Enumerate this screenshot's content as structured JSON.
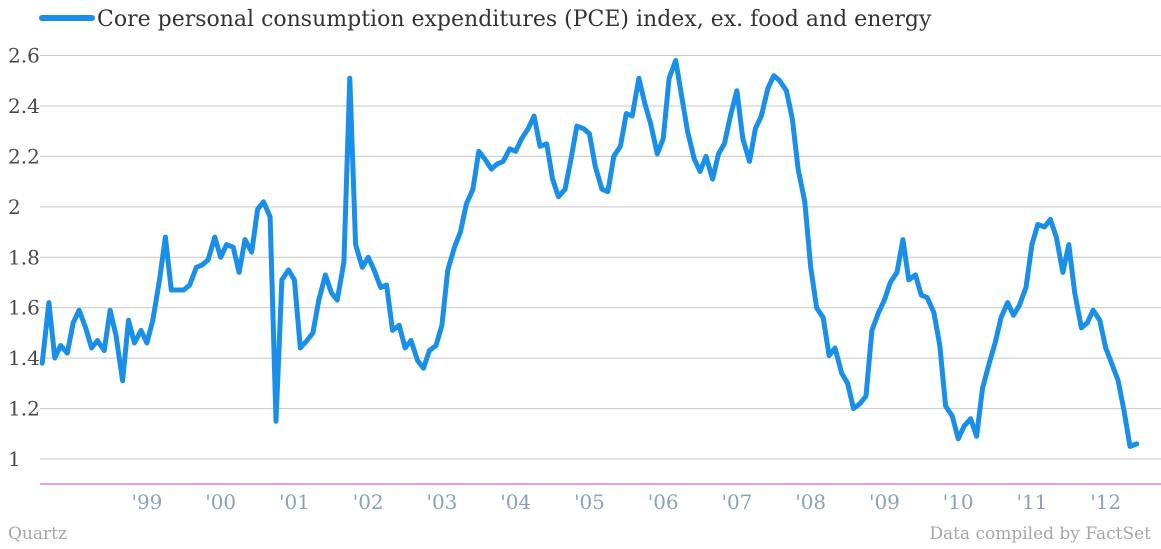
{
  "chart_data": {
    "type": "line",
    "title": "",
    "xlabel": "",
    "ylabel": "",
    "ylim": [
      0.9,
      2.6
    ],
    "yticks": [
      1,
      1.2,
      1.4,
      1.6,
      1.8,
      2,
      2.2,
      2.4,
      2.6
    ],
    "ytick_labels": [
      "1",
      "1.2",
      "1.4",
      "1.6",
      "1.8",
      "2",
      "2.2",
      "2.4",
      "2.6"
    ],
    "xticks": [
      {
        "label": "'99",
        "x": 1999.5
      },
      {
        "label": "'00",
        "x": 2000.5
      },
      {
        "label": "'01",
        "x": 2001.5
      },
      {
        "label": "'02",
        "x": 2002.5
      },
      {
        "label": "'03",
        "x": 2003.5
      },
      {
        "label": "'04",
        "x": 2004.5
      },
      {
        "label": "'05",
        "x": 2005.5
      },
      {
        "label": "'06",
        "x": 2006.5
      },
      {
        "label": "'07",
        "x": 2007.5
      },
      {
        "label": "'08",
        "x": 2008.5
      },
      {
        "label": "'09",
        "x": 2009.5
      },
      {
        "label": "'10",
        "x": 2010.5
      },
      {
        "label": "'11",
        "x": 2011.5
      },
      {
        "label": "'12",
        "x": 2012.5
      }
    ],
    "xlim": [
      1998.05,
      2013.25
    ],
    "grid": true,
    "legend_position": "top-left",
    "series": [
      {
        "name": "Core personal consumption expenditures (PCE) index, ex. food and energy",
        "color": "#1a8fea",
        "points": [
          [
            1998.08,
            1.38
          ],
          [
            1998.17,
            1.62
          ],
          [
            1998.25,
            1.4
          ],
          [
            1998.33,
            1.45
          ],
          [
            1998.42,
            1.42
          ],
          [
            1998.5,
            1.54
          ],
          [
            1998.58,
            1.59
          ],
          [
            1998.67,
            1.52
          ],
          [
            1998.75,
            1.44
          ],
          [
            1998.83,
            1.47
          ],
          [
            1998.92,
            1.43
          ],
          [
            1999.0,
            1.59
          ],
          [
            1999.08,
            1.49
          ],
          [
            1999.17,
            1.31
          ],
          [
            1999.25,
            1.55
          ],
          [
            1999.33,
            1.46
          ],
          [
            1999.42,
            1.51
          ],
          [
            1999.5,
            1.46
          ],
          [
            1999.58,
            1.55
          ],
          [
            1999.67,
            1.71
          ],
          [
            1999.75,
            1.88
          ],
          [
            1999.83,
            1.67
          ],
          [
            1999.92,
            1.67
          ],
          [
            2000.0,
            1.67
          ],
          [
            2000.08,
            1.69
          ],
          [
            2000.17,
            1.76
          ],
          [
            2000.25,
            1.77
          ],
          [
            2000.33,
            1.79
          ],
          [
            2000.42,
            1.88
          ],
          [
            2000.5,
            1.8
          ],
          [
            2000.58,
            1.85
          ],
          [
            2000.67,
            1.84
          ],
          [
            2000.75,
            1.74
          ],
          [
            2000.83,
            1.87
          ],
          [
            2000.92,
            1.82
          ],
          [
            2001.0,
            1.99
          ],
          [
            2001.08,
            2.02
          ],
          [
            2001.17,
            1.96
          ],
          [
            2001.25,
            1.15
          ],
          [
            2001.33,
            1.71
          ],
          [
            2001.42,
            1.75
          ],
          [
            2001.5,
            1.71
          ],
          [
            2001.58,
            1.44
          ],
          [
            2001.67,
            1.47
          ],
          [
            2001.75,
            1.5
          ],
          [
            2001.83,
            1.63
          ],
          [
            2001.92,
            1.73
          ],
          [
            2002.0,
            1.66
          ],
          [
            2002.08,
            1.63
          ],
          [
            2002.17,
            1.78
          ],
          [
            2002.25,
            2.51
          ],
          [
            2002.33,
            1.85
          ],
          [
            2002.42,
            1.76
          ],
          [
            2002.5,
            1.8
          ],
          [
            2002.58,
            1.75
          ],
          [
            2002.67,
            1.68
          ],
          [
            2002.75,
            1.69
          ],
          [
            2002.83,
            1.51
          ],
          [
            2002.92,
            1.53
          ],
          [
            2003.0,
            1.44
          ],
          [
            2003.08,
            1.47
          ],
          [
            2003.17,
            1.39
          ],
          [
            2003.25,
            1.36
          ],
          [
            2003.33,
            1.43
          ],
          [
            2003.42,
            1.45
          ],
          [
            2003.5,
            1.53
          ],
          [
            2003.58,
            1.75
          ],
          [
            2003.67,
            1.84
          ],
          [
            2003.75,
            1.9
          ],
          [
            2003.83,
            2.01
          ],
          [
            2003.92,
            2.07
          ],
          [
            2004.0,
            2.22
          ],
          [
            2004.08,
            2.19
          ],
          [
            2004.17,
            2.15
          ],
          [
            2004.25,
            2.17
          ],
          [
            2004.33,
            2.18
          ],
          [
            2004.42,
            2.23
          ],
          [
            2004.5,
            2.22
          ],
          [
            2004.58,
            2.27
          ],
          [
            2004.67,
            2.31
          ],
          [
            2004.75,
            2.36
          ],
          [
            2004.83,
            2.24
          ],
          [
            2004.92,
            2.25
          ],
          [
            2005.0,
            2.11
          ],
          [
            2005.08,
            2.04
          ],
          [
            2005.17,
            2.07
          ],
          [
            2005.25,
            2.19
          ],
          [
            2005.33,
            2.32
          ],
          [
            2005.42,
            2.31
          ],
          [
            2005.5,
            2.29
          ],
          [
            2005.58,
            2.16
          ],
          [
            2005.67,
            2.07
          ],
          [
            2005.75,
            2.06
          ],
          [
            2005.83,
            2.2
          ],
          [
            2005.92,
            2.24
          ],
          [
            2006.0,
            2.37
          ],
          [
            2006.08,
            2.36
          ],
          [
            2006.17,
            2.51
          ],
          [
            2006.25,
            2.41
          ],
          [
            2006.33,
            2.33
          ],
          [
            2006.42,
            2.21
          ],
          [
            2006.5,
            2.27
          ],
          [
            2006.58,
            2.51
          ],
          [
            2006.67,
            2.58
          ],
          [
            2006.75,
            2.44
          ],
          [
            2006.83,
            2.3
          ],
          [
            2006.92,
            2.19
          ],
          [
            2007.0,
            2.14
          ],
          [
            2007.08,
            2.2
          ],
          [
            2007.17,
            2.11
          ],
          [
            2007.25,
            2.21
          ],
          [
            2007.33,
            2.25
          ],
          [
            2007.42,
            2.37
          ],
          [
            2007.5,
            2.46
          ],
          [
            2007.58,
            2.27
          ],
          [
            2007.67,
            2.18
          ],
          [
            2007.75,
            2.31
          ],
          [
            2007.83,
            2.36
          ],
          [
            2007.92,
            2.47
          ],
          [
            2008.0,
            2.52
          ],
          [
            2008.08,
            2.5
          ],
          [
            2008.17,
            2.46
          ],
          [
            2008.25,
            2.35
          ],
          [
            2008.33,
            2.15
          ],
          [
            2008.42,
            2.02
          ],
          [
            2008.5,
            1.76
          ],
          [
            2008.58,
            1.6
          ],
          [
            2008.67,
            1.56
          ],
          [
            2008.75,
            1.41
          ],
          [
            2008.83,
            1.44
          ],
          [
            2008.92,
            1.34
          ],
          [
            2009.0,
            1.3
          ],
          [
            2009.08,
            1.2
          ],
          [
            2009.17,
            1.22
          ],
          [
            2009.25,
            1.25
          ],
          [
            2009.33,
            1.51
          ],
          [
            2009.42,
            1.58
          ],
          [
            2009.5,
            1.63
          ],
          [
            2009.58,
            1.7
          ],
          [
            2009.67,
            1.74
          ],
          [
            2009.75,
            1.87
          ],
          [
            2009.83,
            1.71
          ],
          [
            2009.92,
            1.73
          ],
          [
            2010.0,
            1.65
          ],
          [
            2010.08,
            1.64
          ],
          [
            2010.17,
            1.58
          ],
          [
            2010.25,
            1.45
          ],
          [
            2010.33,
            1.21
          ],
          [
            2010.42,
            1.17
          ],
          [
            2010.5,
            1.08
          ],
          [
            2010.58,
            1.13
          ],
          [
            2010.67,
            1.16
          ],
          [
            2010.75,
            1.09
          ],
          [
            2010.83,
            1.28
          ],
          [
            2010.92,
            1.38
          ],
          [
            2011.0,
            1.46
          ],
          [
            2011.08,
            1.56
          ],
          [
            2011.17,
            1.62
          ],
          [
            2011.25,
            1.57
          ],
          [
            2011.33,
            1.61
          ],
          [
            2011.42,
            1.68
          ],
          [
            2011.5,
            1.85
          ],
          [
            2011.58,
            1.93
          ],
          [
            2011.67,
            1.92
          ],
          [
            2011.75,
            1.95
          ],
          [
            2011.83,
            1.88
          ],
          [
            2011.92,
            1.74
          ],
          [
            2012.0,
            1.85
          ],
          [
            2012.08,
            1.66
          ],
          [
            2012.17,
            1.52
          ],
          [
            2012.25,
            1.54
          ],
          [
            2012.33,
            1.59
          ],
          [
            2012.42,
            1.55
          ],
          [
            2012.5,
            1.44
          ],
          [
            2012.58,
            1.38
          ],
          [
            2012.67,
            1.31
          ],
          [
            2012.75,
            1.19
          ],
          [
            2012.83,
            1.05
          ],
          [
            2012.92,
            1.06
          ]
        ]
      }
    ]
  },
  "footer": {
    "source_left": "Quartz",
    "source_right": "Data compiled by FactSet"
  },
  "colors": {
    "line": "#1a8fea",
    "grid": "#c8c8c8",
    "baseline": "#e060c8",
    "xtick": "#8ba2b8"
  }
}
